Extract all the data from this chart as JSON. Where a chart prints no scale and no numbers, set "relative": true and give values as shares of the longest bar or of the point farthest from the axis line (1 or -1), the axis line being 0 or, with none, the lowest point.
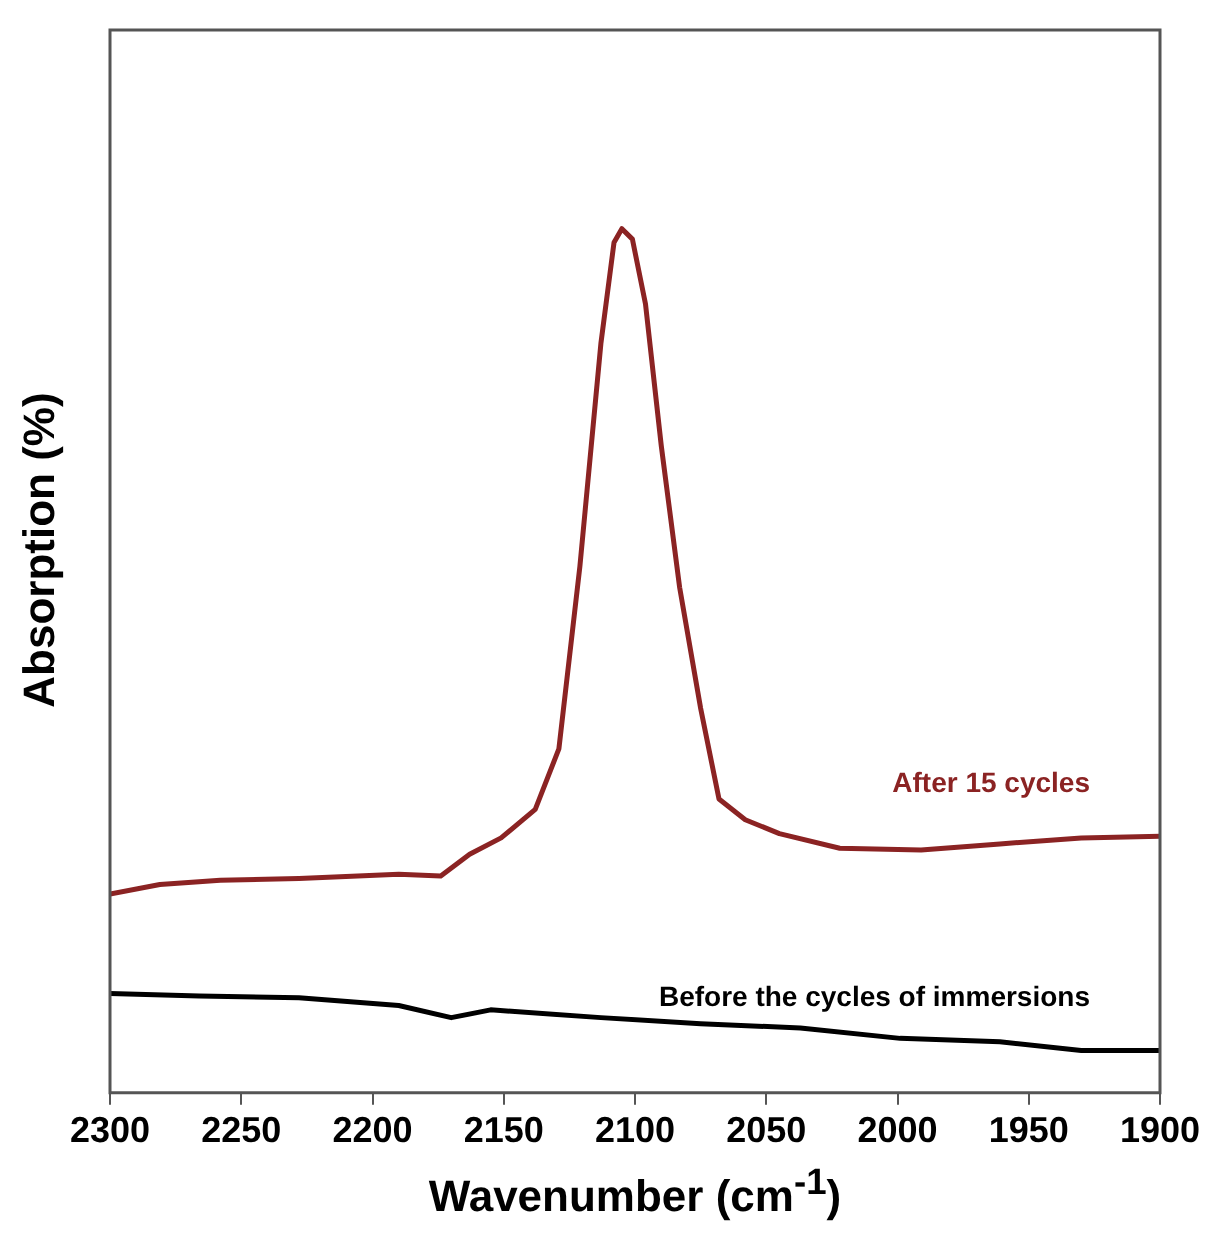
{
  "chart_data": {
    "type": "line",
    "relative": true,
    "xlabel": "Wavenumber (cm$^{-1}$)",
    "ylabel": "Absorption (%)",
    "xlim": [
      2300,
      1900
    ],
    "xticks": [
      2300,
      2250,
      2200,
      2150,
      2100,
      2050,
      2000,
      1950,
      1900
    ],
    "grid": false,
    "legend": false,
    "marker": "none",
    "line_style": "solid",
    "series": [
      {
        "name": "After 15 cycles",
        "color": "#8b2323",
        "x": [
          2300,
          2281,
          2258,
          2228,
          2190,
          2174,
          2163,
          2151,
          2138,
          2129,
          2121,
          2113,
          2108,
          2105,
          2101,
          2096,
          2090,
          2083,
          2075,
          2068,
          2058,
          2045,
          2022,
          1991,
          1961,
          1930,
          1900
        ],
        "values": [
          0.23,
          0.241,
          0.246,
          0.248,
          0.253,
          0.251,
          0.276,
          0.295,
          0.328,
          0.398,
          0.609,
          0.867,
          0.984,
          1.0,
          0.988,
          0.913,
          0.749,
          0.585,
          0.445,
          0.34,
          0.316,
          0.3,
          0.283,
          0.281,
          0.288,
          0.295,
          0.297
        ]
      },
      {
        "name": "Before the cycles of immersions",
        "color": "#000000",
        "x": [
          2300,
          2266,
          2228,
          2190,
          2170,
          2155,
          2113,
          2075,
          2037,
          1999,
          1961,
          1930,
          1900
        ],
        "values": [
          0.115,
          0.112,
          0.11,
          0.101,
          0.087,
          0.096,
          0.087,
          0.08,
          0.075,
          0.063,
          0.059,
          0.049,
          0.049
        ]
      }
    ]
  }
}
